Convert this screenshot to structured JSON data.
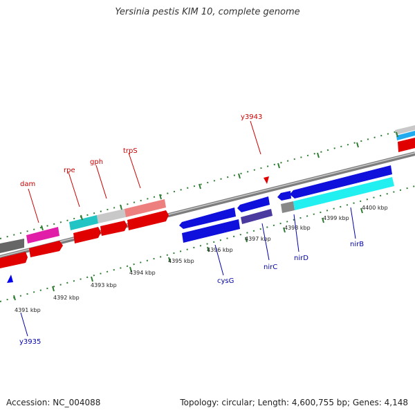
{
  "header": {
    "title": "Yersinia pestis KIM 10, complete genome"
  },
  "footer": {
    "accession": "Accession: NC_004088",
    "summary": "Topology: circular; Length: 4,600,755 bp; Genes: 4,148"
  },
  "colors": {
    "forward_label": "#cc0000",
    "reverse_label": "#0000aa",
    "tick_outer": "#2e7d32",
    "backbone": "#888888"
  },
  "ticks": [
    {
      "label": "4391 kbp"
    },
    {
      "label": "4392 kbp"
    },
    {
      "label": "4393 kbp"
    },
    {
      "label": "4394 kbp"
    },
    {
      "label": "4395 kbp"
    },
    {
      "label": "4396 kbp"
    },
    {
      "label": "4397 kbp"
    },
    {
      "label": "4398 kbp"
    },
    {
      "label": "4399 kbp"
    },
    {
      "label": "4400 kbp"
    }
  ],
  "genes_forward": [
    {
      "label": "dam",
      "color": "#cc0000"
    },
    {
      "label": "rpe",
      "color": "#cc0000"
    },
    {
      "label": "gph",
      "color": "#cc0000"
    },
    {
      "label": "trpS",
      "color": "#cc0000"
    },
    {
      "label": "y3943",
      "color": "#cc0000"
    }
  ],
  "genes_reverse": [
    {
      "label": "y3935",
      "color": "#0000aa"
    },
    {
      "label": "cysG",
      "color": "#0000aa"
    },
    {
      "label": "nirC",
      "color": "#0000aa"
    },
    {
      "label": "nirD",
      "color": "#0000aa"
    },
    {
      "label": "nirB",
      "color": "#0000aa"
    }
  ]
}
